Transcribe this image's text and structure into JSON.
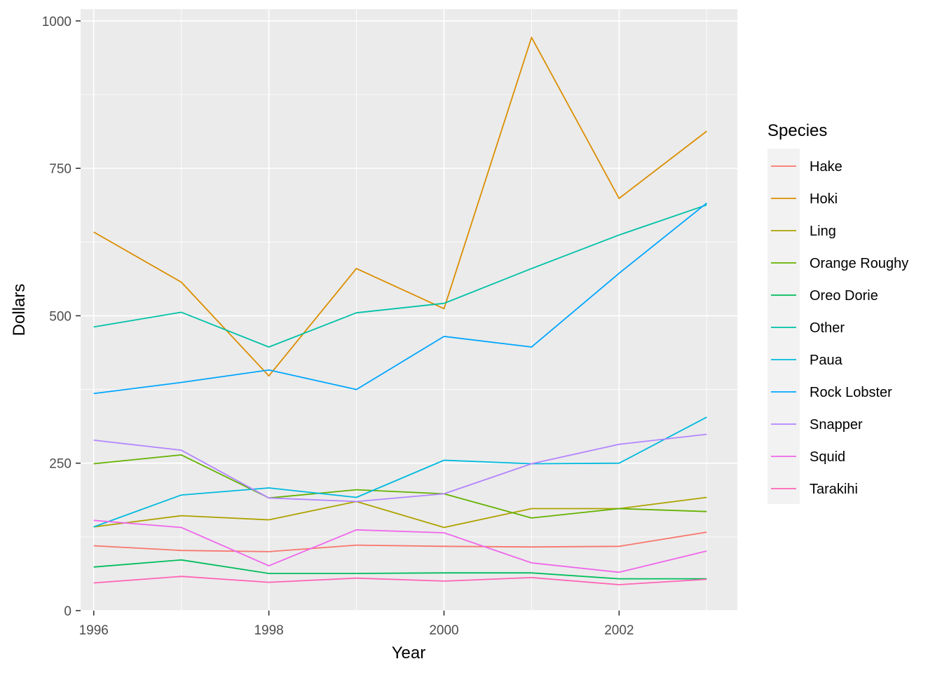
{
  "chart_data": {
    "type": "line",
    "xlabel": "Year",
    "ylabel": "Dollars",
    "xlim": [
      1995.85,
      2003.35
    ],
    "ylim": [
      0,
      1020
    ],
    "x_ticks": [
      1996,
      1998,
      2000,
      2002
    ],
    "y_ticks": [
      0,
      250,
      500,
      750,
      1000
    ],
    "grid": true,
    "legend": {
      "title": "Species",
      "position": "right"
    },
    "x": [
      1996,
      1997,
      1998,
      1999,
      2000,
      2001,
      2002,
      2003
    ],
    "series": [
      {
        "name": "Hake",
        "color": "#F8766D",
        "values": [
          110,
          102,
          100,
          111,
          109,
          108,
          109,
          133
        ]
      },
      {
        "name": "Hoki",
        "color": "#DB8E00",
        "values": [
          642,
          557,
          398,
          580,
          512,
          972,
          699,
          813
        ]
      },
      {
        "name": "Ling",
        "color": "#AEA200",
        "values": [
          142,
          161,
          154,
          185,
          141,
          173,
          173,
          192
        ]
      },
      {
        "name": "Orange Roughy",
        "color": "#64B200",
        "values": [
          249,
          264,
          191,
          205,
          198,
          157,
          173,
          168
        ]
      },
      {
        "name": "Oreo Dorie",
        "color": "#00BD5C",
        "values": [
          74,
          86,
          63,
          63,
          64,
          64,
          54,
          54
        ]
      },
      {
        "name": "Other",
        "color": "#00C1A7",
        "values": [
          481,
          506,
          447,
          505,
          521,
          580,
          637,
          688
        ]
      },
      {
        "name": "Paua",
        "color": "#00BADE",
        "values": [
          142,
          196,
          208,
          192,
          255,
          249,
          250,
          328
        ]
      },
      {
        "name": "Rock Lobster",
        "color": "#00A6FF",
        "values": [
          368,
          387,
          408,
          375,
          465,
          447,
          572,
          691
        ]
      },
      {
        "name": "Snapper",
        "color": "#B385FF",
        "values": [
          289,
          272,
          191,
          185,
          198,
          249,
          282,
          299
        ]
      },
      {
        "name": "Squid",
        "color": "#EF67EB",
        "values": [
          153,
          141,
          76,
          137,
          132,
          81,
          65,
          101
        ]
      },
      {
        "name": "Tarakihi",
        "color": "#FF63B6",
        "values": [
          47,
          58,
          48,
          55,
          50,
          56,
          44,
          53
        ]
      }
    ]
  }
}
